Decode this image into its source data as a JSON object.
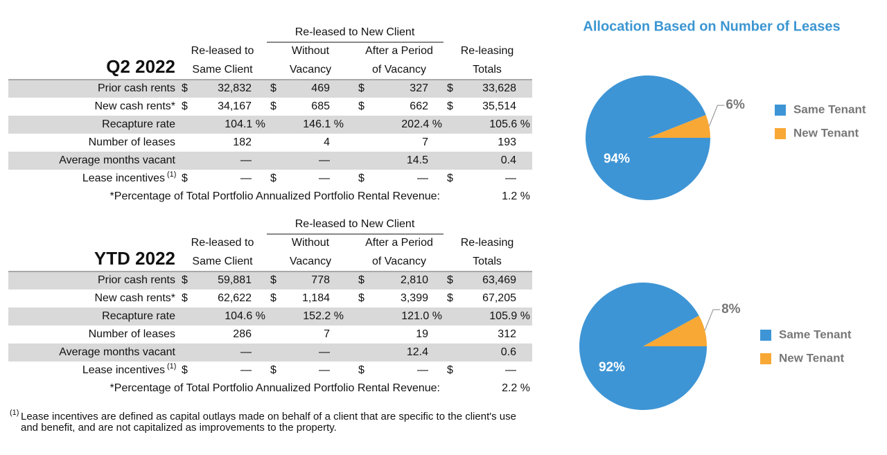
{
  "tables": [
    {
      "period": "Q2 2022",
      "group_header": "Re-leased to New Client",
      "columns": [
        [
          "Re-leased to",
          "Same Client"
        ],
        [
          "Without",
          "Vacancy"
        ],
        [
          "After a Period",
          "of Vacancy"
        ],
        [
          "Re-leasing",
          "Totals"
        ]
      ],
      "rows": [
        {
          "label": "Prior cash rents",
          "currency": "$",
          "values": [
            "32,832",
            "469",
            "327",
            "33,628"
          ]
        },
        {
          "label": "New cash rents*",
          "currency": "$",
          "values": [
            "34,167",
            "685",
            "662",
            "35,514"
          ]
        },
        {
          "label": "Recapture rate",
          "values": [
            "104.1 %",
            "146.1 %",
            "202.4 %",
            "105.6 %"
          ]
        },
        {
          "label": "Number of leases",
          "values": [
            "182",
            "4",
            "7",
            "193"
          ]
        },
        {
          "label": "Average months vacant",
          "values": [
            "—",
            "—",
            "14.5",
            "0.4"
          ]
        },
        {
          "label": "Lease incentives",
          "note": "(1)",
          "currency": "$",
          "values": [
            "—",
            "—",
            "—",
            "—"
          ]
        }
      ],
      "footer": {
        "label": "*Percentage of Total Portfolio Annualized Portfolio Rental Revenue:",
        "value": "1.2 %"
      }
    },
    {
      "period": "YTD 2022",
      "group_header": "Re-leased to New Client",
      "columns": [
        [
          "Re-leased to",
          "Same Client"
        ],
        [
          "Without",
          "Vacancy"
        ],
        [
          "After a Period",
          "of Vacancy"
        ],
        [
          "Re-leasing",
          "Totals"
        ]
      ],
      "rows": [
        {
          "label": "Prior cash rents",
          "currency": "$",
          "values": [
            "59,881",
            "778",
            "2,810",
            "63,469"
          ]
        },
        {
          "label": "New cash rents*",
          "currency": "$",
          "values": [
            "62,622",
            "1,184",
            "3,399",
            "67,205"
          ]
        },
        {
          "label": "Recapture rate",
          "values": [
            "104.6 %",
            "152.2 %",
            "121.0 %",
            "105.9 %"
          ]
        },
        {
          "label": "Number of leases",
          "values": [
            "286",
            "7",
            "19",
            "312"
          ]
        },
        {
          "label": "Average months vacant",
          "values": [
            "—",
            "—",
            "12.4",
            "0.6"
          ]
        },
        {
          "label": "Lease incentives",
          "note": "(1)",
          "currency": "$",
          "values": [
            "—",
            "—",
            "—",
            "—"
          ]
        }
      ],
      "footer": {
        "label": "*Percentage of Total Portfolio Annualized Portfolio Rental Revenue:",
        "value": "2.2 %"
      }
    }
  ],
  "footnote": {
    "marker": "(1)",
    "text": "Lease incentives are defined as capital outlays made on behalf of a client that are specific to the client's use and benefit, and are not capitalized as improvements to the property."
  },
  "chart_data": [
    {
      "type": "pie",
      "title": "Allocation Based on Number of Leases",
      "categories": [
        "Same Tenant",
        "New Tenant"
      ],
      "values": [
        94,
        6
      ],
      "value_labels": [
        "94%",
        "6%"
      ],
      "colors": [
        "#3e95d5",
        "#f8a835"
      ]
    },
    {
      "type": "pie",
      "categories": [
        "Same Tenant",
        "New Tenant"
      ],
      "values": [
        92,
        8
      ],
      "value_labels": [
        "92%",
        "8%"
      ],
      "colors": [
        "#3e95d5",
        "#f8a835"
      ]
    }
  ]
}
